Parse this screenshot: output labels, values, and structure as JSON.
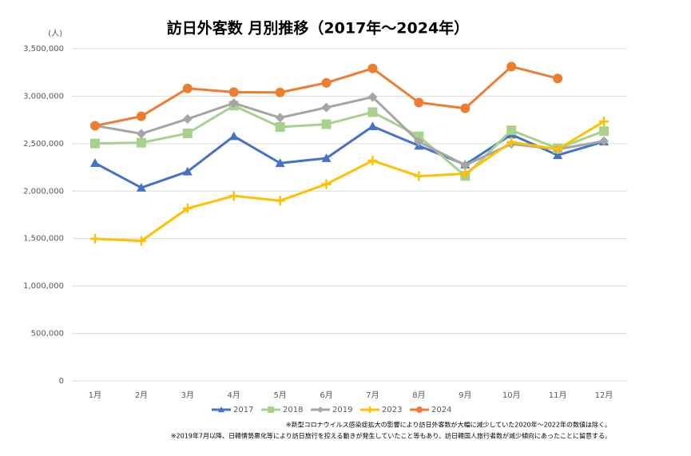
{
  "chart_data": {
    "type": "line",
    "title": "訪日外客数 月別推移（2017年～2024年）",
    "y_unit": "(人)",
    "categories": [
      "1月",
      "2月",
      "3月",
      "4月",
      "5月",
      "6月",
      "7月",
      "8月",
      "9月",
      "10月",
      "11月",
      "12月"
    ],
    "series": [
      {
        "name": "2017",
        "color": "#4472c4",
        "marker": "triangle",
        "values": [
          2295688,
          2035805,
          2205726,
          2578023,
          2294639,
          2346451,
          2682060,
          2477468,
          2279139,
          2595656,
          2378118,
          2521415
        ]
      },
      {
        "name": "2018",
        "color": "#a9d18e",
        "marker": "square",
        "values": [
          2501409,
          2509297,
          2607956,
          2900718,
          2675052,
          2704631,
          2832040,
          2578021,
          2159600,
          2640643,
          2449568,
          2632000
        ]
      },
      {
        "name": "2019",
        "color": "#a5a5a5",
        "marker": "diamond",
        "values": [
          2689339,
          2604322,
          2760136,
          2926685,
          2773091,
          2880041,
          2991189,
          2520134,
          2272883,
          2496568,
          2441274,
          2526387
        ]
      },
      {
        "name": "2023",
        "color": "#ffc000",
        "marker": "plus",
        "values": [
          1497472,
          1475455,
          1817500,
          1949236,
          1898900,
          2073300,
          2320600,
          2156900,
          2183300,
          2516500,
          2440800,
          2733000
        ]
      },
      {
        "name": "2024",
        "color": "#ed7d31",
        "marker": "circle",
        "values": [
          2688100,
          2788000,
          3081600,
          3042900,
          3039600,
          3140600,
          3292500,
          2933000,
          2872200,
          3312200,
          3187000,
          null
        ]
      }
    ],
    "ylim": [
      0,
      3500000
    ],
    "yticks": [
      0,
      {
        "value": 500000,
        "label": "500,000"
      },
      {
        "value": 1000000,
        "label": "1,000,000"
      },
      {
        "value": 1500000,
        "label": "1,500,000"
      },
      {
        "value": 2000000,
        "label": "2,000,000"
      },
      {
        "value": 2500000,
        "label": "2,500,000"
      },
      {
        "value": 3000000,
        "label": "3,000,000"
      },
      {
        "value": 3500000,
        "label": "3,500,000"
      }
    ],
    "grid": true,
    "legend": "bottom",
    "notes": [
      "※新型コロナウイルス感染症拡大の影響により訪日外客数が大幅に減少していた2020年～2022年の数値は除く。",
      "※2019年7月以降、日韓情勢悪化等により訪日旅行を控える動きが発生していたこと等もあり、訪日韓国人旅行者数が減少傾向にあったことに留意する。"
    ]
  }
}
